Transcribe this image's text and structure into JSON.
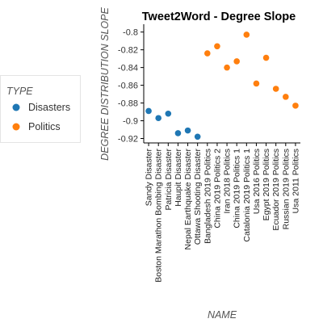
{
  "chart_data": {
    "type": "scatter",
    "title": "Tweet2Word - Degree Slope",
    "xlabel": "NAME",
    "ylabel": "DEGREE DISTRIBUTION SLOPE",
    "ylim": [
      -0.925,
      -0.793
    ],
    "yticks": [
      -0.8,
      -0.82,
      -0.84,
      -0.86,
      -0.88,
      -0.9,
      -0.92
    ],
    "ytick_labels": [
      "-0.8",
      "-0.82",
      "-0.84",
      "-0.86",
      "-0.88",
      "-0.9",
      "-0.92"
    ],
    "grid": false,
    "legend": {
      "title": "TYPE",
      "placement": "left"
    },
    "categories": [
      "Sandy Disaster",
      "Boston Marathon Bombing Disaster",
      "Patricia Disaster",
      "Haupit Disaster",
      "Nepal Earthquake Disaster",
      "Ottawa Shooting Disaster",
      "Bangladesh 2019 Politics",
      "China 2019 Politics 2",
      "Iran 2018 Politics",
      "China 2019 Politics 1",
      "Catalonia 2019 Politics 1",
      "Usa 2016 Politics",
      "Egypt 2019 Politics",
      "Ecuador 2019 Politics",
      "Russian 2019 Politics",
      "Usa 2011 Politics"
    ],
    "series": [
      {
        "name": "Disasters",
        "color": "#1f77b4",
        "points": [
          {
            "x": "Sandy Disaster",
            "y": -0.889
          },
          {
            "x": "Boston Marathon Bombing Disaster",
            "y": -0.897
          },
          {
            "x": "Patricia Disaster",
            "y": -0.892
          },
          {
            "x": "Haupit Disaster",
            "y": -0.914
          },
          {
            "x": "Nepal Earthquake Disaster",
            "y": -0.911
          },
          {
            "x": "Ottawa Shooting Disaster",
            "y": -0.918
          }
        ]
      },
      {
        "name": "Politics",
        "color": "#ff7f0e",
        "points": [
          {
            "x": "Bangladesh 2019 Politics",
            "y": -0.824
          },
          {
            "x": "China 2019 Politics 2",
            "y": -0.816
          },
          {
            "x": "Iran 2018 Politics",
            "y": -0.84
          },
          {
            "x": "China 2019 Politics 1",
            "y": -0.833
          },
          {
            "x": "Catalonia 2019 Politics 1",
            "y": -0.803
          },
          {
            "x": "Usa 2016 Politics",
            "y": -0.858
          },
          {
            "x": "Egypt 2019 Politics",
            "y": -0.829
          },
          {
            "x": "Ecuador 2019 Politics",
            "y": -0.864
          },
          {
            "x": "Russian 2019 Politics",
            "y": -0.873
          },
          {
            "x": "Usa 2011 Politics",
            "y": -0.883
          }
        ]
      }
    ]
  }
}
